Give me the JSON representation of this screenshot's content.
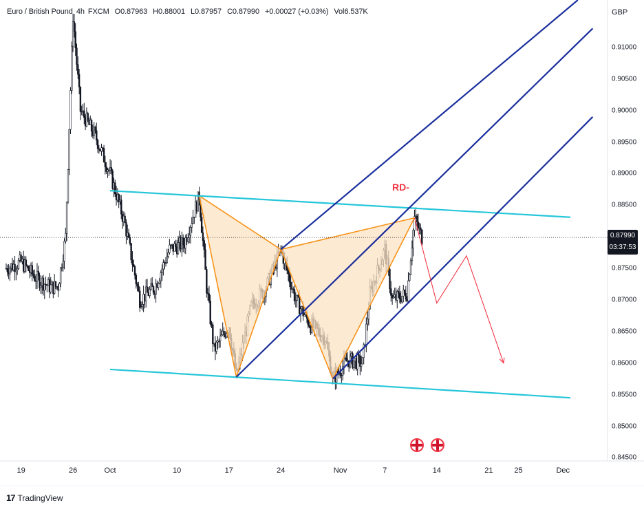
{
  "header": {
    "symbol": "Euro / British Pound",
    "timeframe": "4h",
    "exchange": "FXCM",
    "open": "O0.87963",
    "high": "H0.88001",
    "low": "L0.87957",
    "close": "C0.87990",
    "change": "+0.00027 (+0.03%)",
    "volume": "Vol6.537K"
  },
  "price_axis": {
    "currency": "GBP",
    "ticks": [
      "0.91000",
      "0.90500",
      "0.90000",
      "0.89500",
      "0.89000",
      "0.88500",
      "0.87500",
      "0.87000",
      "0.86500",
      "0.86000",
      "0.85500",
      "0.85000",
      "0.84500"
    ]
  },
  "time_axis": {
    "ticks": [
      "19",
      "26",
      "Oct",
      "10",
      "17",
      "24",
      "Nov",
      "7",
      "14",
      "21",
      "25",
      "Dec"
    ]
  },
  "current_price": {
    "price": "0.87990",
    "countdown": "03:37:53"
  },
  "annotation": {
    "label": "RD-"
  },
  "branding": {
    "logo_text": "TradingView",
    "logo_mark": "17"
  },
  "colors": {
    "up_candle": "#131722",
    "down_candle": "#131722",
    "channel_line": "#26c6da",
    "parallel_line": "#1a2f9c",
    "pattern_fill": "#fce3c4",
    "pattern_stroke": "#f7931a",
    "projection": "#f23645"
  },
  "chart_data": {
    "type": "candlestick",
    "symbol": "EUR/GBP",
    "timeframe": "4h",
    "y_range": [
      0.8445,
      0.9175
    ],
    "x_range": [
      "Sep 17",
      "Dec 7"
    ],
    "price_path": [
      {
        "t": "Sep 17",
        "p": 0.875
      },
      {
        "t": "Sep 19",
        "p": 0.876
      },
      {
        "t": "Sep 21",
        "p": 0.8735
      },
      {
        "t": "Sep 23",
        "p": 0.872
      },
      {
        "t": "Sep 24",
        "p": 0.8722
      },
      {
        "t": "Sep 25",
        "p": 0.88
      },
      {
        "t": "Sep 26",
        "p": 0.915
      },
      {
        "t": "Sep 27",
        "p": 0.9
      },
      {
        "t": "Sep 29",
        "p": 0.896
      },
      {
        "t": "Oct 1",
        "p": 0.89
      },
      {
        "t": "Oct 3",
        "p": 0.882
      },
      {
        "t": "Oct 5",
        "p": 0.87
      },
      {
        "t": "Oct 7",
        "p": 0.872
      },
      {
        "t": "Oct 9",
        "p": 0.878
      },
      {
        "t": "Oct 11",
        "p": 0.879
      },
      {
        "t": "Oct 13",
        "p": 0.8865
      },
      {
        "t": "Oct 14",
        "p": 0.872
      },
      {
        "t": "Oct 15",
        "p": 0.862
      },
      {
        "t": "Oct 17",
        "p": 0.866
      },
      {
        "t": "Oct 18",
        "p": 0.858
      },
      {
        "t": "Oct 20",
        "p": 0.869
      },
      {
        "t": "Oct 22",
        "p": 0.872
      },
      {
        "t": "Oct 24",
        "p": 0.878
      },
      {
        "t": "Oct 26",
        "p": 0.87
      },
      {
        "t": "Oct 28",
        "p": 0.866
      },
      {
        "t": "Oct 30",
        "p": 0.864
      },
      {
        "t": "Oct 31",
        "p": 0.8575
      },
      {
        "t": "Nov 2",
        "p": 0.8605
      },
      {
        "t": "Nov 4",
        "p": 0.86
      },
      {
        "t": "Nov 5",
        "p": 0.871
      },
      {
        "t": "Nov 7",
        "p": 0.878
      },
      {
        "t": "Nov 8",
        "p": 0.87
      },
      {
        "t": "Nov 10",
        "p": 0.871
      },
      {
        "t": "Nov 11",
        "p": 0.883
      },
      {
        "t": "Nov 12",
        "p": 0.8799
      }
    ],
    "channel_lines": [
      {
        "from": {
          "t": "Oct 1",
          "p": 0.8873
        },
        "to": {
          "t": "Dec 2",
          "p": 0.8831
        }
      },
      {
        "from": {
          "t": "Oct 1",
          "p": 0.859
        },
        "to": {
          "t": "Dec 2",
          "p": 0.8545
        }
      }
    ],
    "pitchfork_lines": [
      {
        "from": {
          "t": "Oct 24",
          "p": 0.878
        },
        "to": {
          "t": "Dec 3",
          "p": 0.9175
        }
      },
      {
        "from": {
          "t": "Oct 31",
          "p": 0.8575
        },
        "to": {
          "t": "Dec 5",
          "p": 0.899
        }
      },
      {
        "from": {
          "t": "Oct 18",
          "p": 0.8578
        },
        "to": {
          "t": "Dec 5",
          "p": 0.913
        }
      }
    ],
    "harmonic_pattern": {
      "points": [
        {
          "t": "Oct 13",
          "p": 0.8865
        },
        {
          "t": "Oct 18",
          "p": 0.8578
        },
        {
          "t": "Oct 24",
          "p": 0.878
        },
        {
          "t": "Oct 31",
          "p": 0.8575
        },
        {
          "t": "Nov 11",
          "p": 0.883
        }
      ]
    },
    "projection_path": [
      {
        "t": "Nov 11",
        "p": 0.883
      },
      {
        "t": "Nov 14",
        "p": 0.8695
      },
      {
        "t": "Nov 18",
        "p": 0.877
      },
      {
        "t": "Nov 23",
        "p": 0.86
      }
    ],
    "events": [
      "Nov 13",
      "Nov 15"
    ]
  }
}
